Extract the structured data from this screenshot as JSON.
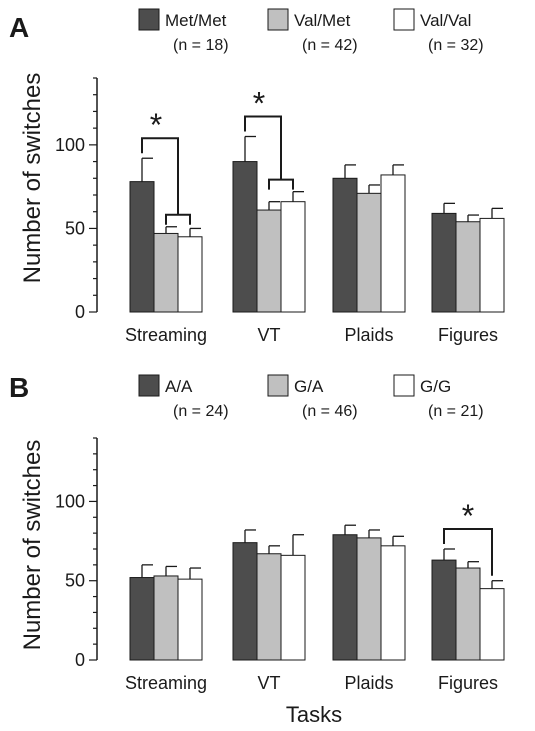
{
  "figure": {
    "xlabel": "Tasks"
  },
  "chart_data": [
    {
      "type": "bar",
      "panel": "A",
      "ylabel": "Number of switches",
      "xlabel": "",
      "ylim": [
        0,
        140
      ],
      "yticks": [
        0,
        50,
        100
      ],
      "error_bars": true,
      "categories": [
        "Streaming",
        "VT",
        "Plaids",
        "Figures"
      ],
      "series": [
        {
          "name": "Met/Met",
          "n": "(n = 18)",
          "color": "#4d4d4d",
          "values": [
            78,
            90,
            80,
            59
          ],
          "errors": [
            14,
            15,
            8,
            6
          ]
        },
        {
          "name": "Val/Met",
          "n": "(n = 42)",
          "color": "#c0c0c0",
          "values": [
            47,
            61,
            71,
            54
          ],
          "errors": [
            4,
            5,
            5,
            4
          ]
        },
        {
          "name": "Val/Val",
          "n": "(n = 32)",
          "color": "#ffffff",
          "values": [
            45,
            66,
            82,
            56
          ],
          "errors": [
            5,
            6,
            6,
            6
          ]
        }
      ],
      "significance": [
        {
          "label": "*",
          "category": 0,
          "left_series": 0,
          "right_series": [
            1,
            2
          ]
        },
        {
          "label": "*",
          "category": 1,
          "left_series": 0,
          "right_series": [
            1,
            2
          ]
        }
      ]
    },
    {
      "type": "bar",
      "panel": "B",
      "ylabel": "Number of switches",
      "xlabel": "Tasks",
      "ylim": [
        0,
        140
      ],
      "yticks": [
        0,
        50,
        100
      ],
      "error_bars": true,
      "categories": [
        "Streaming",
        "VT",
        "Plaids",
        "Figures"
      ],
      "series": [
        {
          "name": "A/A",
          "n": "(n = 24)",
          "color": "#4d4d4d",
          "values": [
            52,
            74,
            79,
            63
          ],
          "errors": [
            8,
            8,
            6,
            7
          ]
        },
        {
          "name": "G/A",
          "n": "(n = 46)",
          "color": "#c0c0c0",
          "values": [
            53,
            67,
            77,
            58
          ],
          "errors": [
            6,
            5,
            5,
            4
          ]
        },
        {
          "name": "G/G",
          "n": "(n = 21)",
          "color": "#ffffff",
          "values": [
            51,
            66,
            72,
            45
          ],
          "errors": [
            7,
            13,
            6,
            5
          ]
        }
      ],
      "significance": [
        {
          "label": "*",
          "category": 3,
          "left_series": 0,
          "right_series": [
            2
          ]
        }
      ]
    }
  ]
}
